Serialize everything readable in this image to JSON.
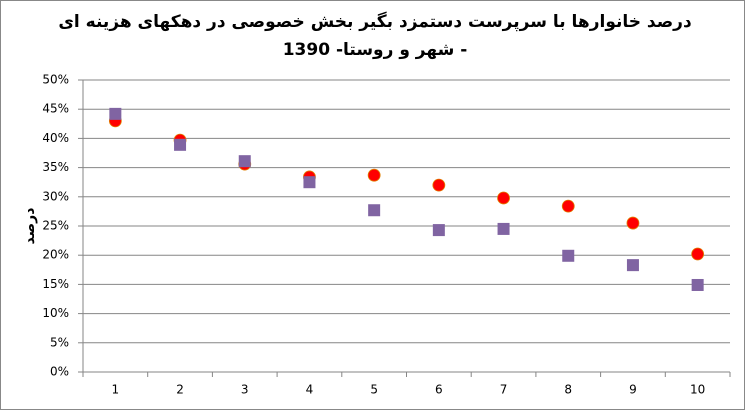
{
  "chart_data": {
    "type": "scatter",
    "title": [
      "درصد خانوارها با سرپرست دستمزد بگیر بخش خصوصی در دهکهای هزینه ای",
      "- شهر و روستا- 1390"
    ],
    "y_label": "درصد",
    "categories": [
      "1",
      "2",
      "3",
      "4",
      "5",
      "6",
      "7",
      "8",
      "9",
      "10"
    ],
    "series": [
      {
        "color": "#ff0000",
        "marker": "circle",
        "values": [
          43.0,
          39.7,
          35.6,
          33.4,
          33.7,
          32.0,
          29.8,
          28.4,
          25.5,
          20.2
        ]
      },
      {
        "color": "#8064a2",
        "marker": "square",
        "values": [
          44.2,
          38.9,
          36.1,
          32.5,
          27.7,
          24.3,
          24.5,
          19.9,
          18.3,
          14.9
        ]
      }
    ],
    "ylim": [
      0,
      50
    ],
    "yticks": [
      {
        "value": 0,
        "label": "0%"
      },
      {
        "value": 5,
        "label": "5%"
      },
      {
        "value": 10,
        "label": "10%"
      },
      {
        "value": 15,
        "label": "15%"
      },
      {
        "value": 20,
        "label": "20%"
      },
      {
        "value": 25,
        "label": "25%"
      },
      {
        "value": 30,
        "label": "30%"
      },
      {
        "value": 35,
        "label": "35%"
      },
      {
        "value": 40,
        "label": "40%"
      },
      {
        "value": 45,
        "label": "45%"
      },
      {
        "value": 50,
        "label": "50%"
      }
    ],
    "grid": true
  }
}
